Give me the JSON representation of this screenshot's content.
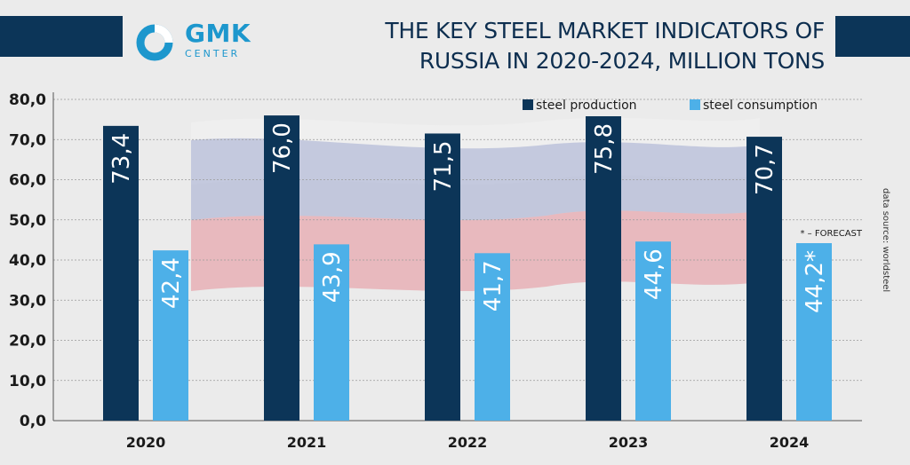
{
  "header": {
    "title_line1": "THE KEY STEEL MARKET INDICATORS OF",
    "title_line2": "RUSSIA IN 2020-2024, MILLION TONS",
    "logo_main": "GMK",
    "logo_sub": "CENTER"
  },
  "source": "data source: worldsteel",
  "forecast_note": "* – FORECAST",
  "colors": {
    "production": "#0c3558",
    "consumption": "#4db0e8",
    "header_bar": "#0c3558",
    "logo": "#1d97cd"
  },
  "chart_data": {
    "type": "bar",
    "categories": [
      "2020",
      "2021",
      "2022",
      "2023",
      "2024"
    ],
    "series": [
      {
        "name": "steel production",
        "values": [
          73.4,
          76.0,
          71.5,
          75.8,
          70.7
        ],
        "labels": [
          "73,4",
          "76,0",
          "71,5",
          "75,8",
          "70,7"
        ]
      },
      {
        "name": "steel  consumption",
        "values": [
          42.4,
          43.9,
          41.7,
          44.6,
          44.2
        ],
        "labels": [
          "42,4",
          "43,9",
          "41,7",
          "44,6",
          "44,2*"
        ]
      }
    ],
    "y_ticks": [
      "0,0",
      "10,0",
      "20,0",
      "30,0",
      "40,0",
      "50,0",
      "60,0",
      "70,0",
      "80,0"
    ],
    "ylim": [
      0,
      80
    ],
    "grid": true,
    "legend": "top-right"
  }
}
